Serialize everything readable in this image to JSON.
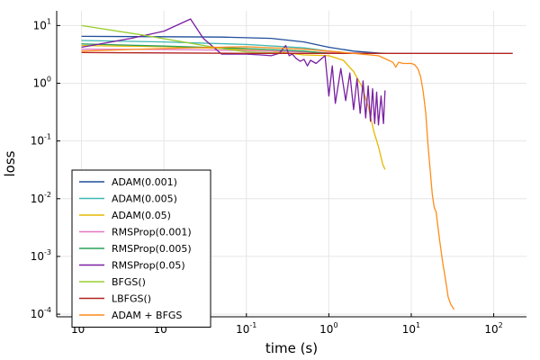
{
  "chart_data": {
    "type": "line",
    "xscale": "log",
    "yscale": "log",
    "xlabel": "time (s)",
    "ylabel": "loss",
    "xlim": [
      0.0005,
      250
    ],
    "ylim": [
      9e-05,
      18
    ],
    "grid": true,
    "legend_position": "bottom-left",
    "x_ticks": [
      {
        "base": "10",
        "exp": "-3",
        "value": 0.001
      },
      {
        "base": "10",
        "exp": "-2",
        "value": 0.01
      },
      {
        "base": "10",
        "exp": "-1",
        "value": 0.1
      },
      {
        "base": "10",
        "exp": "0",
        "value": 1
      },
      {
        "base": "10",
        "exp": "1",
        "value": 10
      },
      {
        "base": "10",
        "exp": "2",
        "value": 100
      }
    ],
    "y_ticks": [
      {
        "base": "10",
        "exp": "-4",
        "value": 0.0001
      },
      {
        "base": "10",
        "exp": "-3",
        "value": 0.001
      },
      {
        "base": "10",
        "exp": "-2",
        "value": 0.01
      },
      {
        "base": "10",
        "exp": "-1",
        "value": 0.1
      },
      {
        "base": "10",
        "exp": "0",
        "value": 1
      },
      {
        "base": "10",
        "exp": "1",
        "value": 10
      }
    ],
    "series": [
      {
        "name": "ADAM(0.001)",
        "color": "#1f4e9a",
        "x": [
          0.001,
          0.01,
          0.05,
          0.2,
          0.5,
          1,
          2,
          4.5
        ],
        "y": [
          6.5,
          6.4,
          6.3,
          6.0,
          5.2,
          4.2,
          3.6,
          3.3
        ]
      },
      {
        "name": "ADAM(0.005)",
        "color": "#3fb8b2",
        "x": [
          0.001,
          0.01,
          0.1,
          0.5,
          1,
          2,
          3,
          4.5
        ],
        "y": [
          5.5,
          5.2,
          4.7,
          4.1,
          3.6,
          3.3,
          3.3,
          3.3
        ]
      },
      {
        "name": "ADAM(0.05)",
        "color": "#e6b800",
        "x": [
          0.001,
          0.01,
          0.05,
          0.2,
          0.5,
          1,
          1.5,
          2,
          2.5,
          3,
          3.5,
          4,
          4.5,
          4.8
        ],
        "y": [
          4.5,
          4.3,
          4.0,
          3.6,
          3.1,
          3.0,
          2.5,
          1.6,
          0.9,
          0.4,
          0.15,
          0.08,
          0.04,
          0.032
        ]
      },
      {
        "name": "RMSProp(0.001)",
        "color": "#e377c2",
        "x": [
          0.001,
          0.01,
          0.1,
          0.5,
          1,
          4.8
        ],
        "y": [
          3.9,
          3.85,
          3.7,
          3.5,
          3.4,
          3.3
        ]
      },
      {
        "name": "RMSProp(0.005)",
        "color": "#2ca05a",
        "x": [
          0.001,
          0.01,
          0.1,
          0.5,
          1,
          2,
          4.8
        ],
        "y": [
          4.8,
          4.4,
          4.0,
          3.6,
          3.3,
          3.3,
          3.3
        ]
      },
      {
        "name": "RMSProp(0.05)",
        "color": "#7a1fa2",
        "x": [
          0.001,
          0.004,
          0.01,
          0.021,
          0.03,
          0.05,
          0.1,
          0.15,
          0.2,
          0.25,
          0.3,
          0.33,
          0.36,
          0.4,
          0.45,
          0.5,
          0.55,
          0.6,
          0.7,
          0.8,
          0.9,
          1.0,
          1.1,
          1.2,
          1.4,
          1.6,
          1.8,
          2.0,
          2.2,
          2.4,
          2.6,
          2.8,
          3.0,
          3.2,
          3.4,
          3.6,
          3.8,
          4.0,
          4.3,
          4.6,
          4.8
        ],
        "y": [
          4.2,
          6.0,
          8.0,
          13.0,
          6.0,
          3.2,
          3.2,
          3.1,
          3.0,
          3.3,
          4.5,
          3.0,
          3.2,
          2.7,
          2.4,
          2.6,
          2.0,
          2.5,
          2.2,
          2.6,
          3.0,
          0.6,
          2.0,
          0.45,
          1.8,
          0.5,
          1.5,
          0.35,
          1.2,
          0.3,
          1.1,
          0.25,
          0.9,
          0.22,
          0.8,
          0.2,
          0.7,
          0.19,
          0.6,
          0.2,
          0.75
        ]
      },
      {
        "name": "BFGS()",
        "color": "#9acd32",
        "x": [
          0.001,
          0.005,
          0.02,
          0.05,
          0.1,
          0.3,
          1,
          3
        ],
        "y": [
          10.0,
          7.0,
          5.0,
          4.0,
          3.5,
          3.3,
          3.3,
          3.3
        ]
      },
      {
        "name": "LBFGS()",
        "color": "#b22222",
        "x": [
          0.001,
          0.01,
          0.1,
          1,
          10,
          170
        ],
        "y": [
          3.4,
          3.35,
          3.3,
          3.3,
          3.3,
          3.3
        ]
      },
      {
        "name": "ADAM + BFGS",
        "color": "#ff8c1a",
        "x": [
          0.001,
          0.01,
          0.1,
          0.5,
          1,
          2,
          4,
          5,
          6,
          6.5,
          7,
          8,
          9,
          10,
          11,
          12,
          13,
          14,
          15,
          16,
          17,
          18,
          19,
          20,
          22,
          24,
          26,
          28,
          30,
          32,
          33
        ],
        "y": [
          3.6,
          4.0,
          4.3,
          3.9,
          3.6,
          3.3,
          3.0,
          2.6,
          2.3,
          1.9,
          2.3,
          2.2,
          2.2,
          2.2,
          2.1,
          1.8,
          1.3,
          0.7,
          0.3,
          0.08,
          0.03,
          0.012,
          0.007,
          0.006,
          0.002,
          0.0008,
          0.0004,
          0.0002,
          0.00015,
          0.00013,
          0.00012
        ]
      }
    ]
  }
}
